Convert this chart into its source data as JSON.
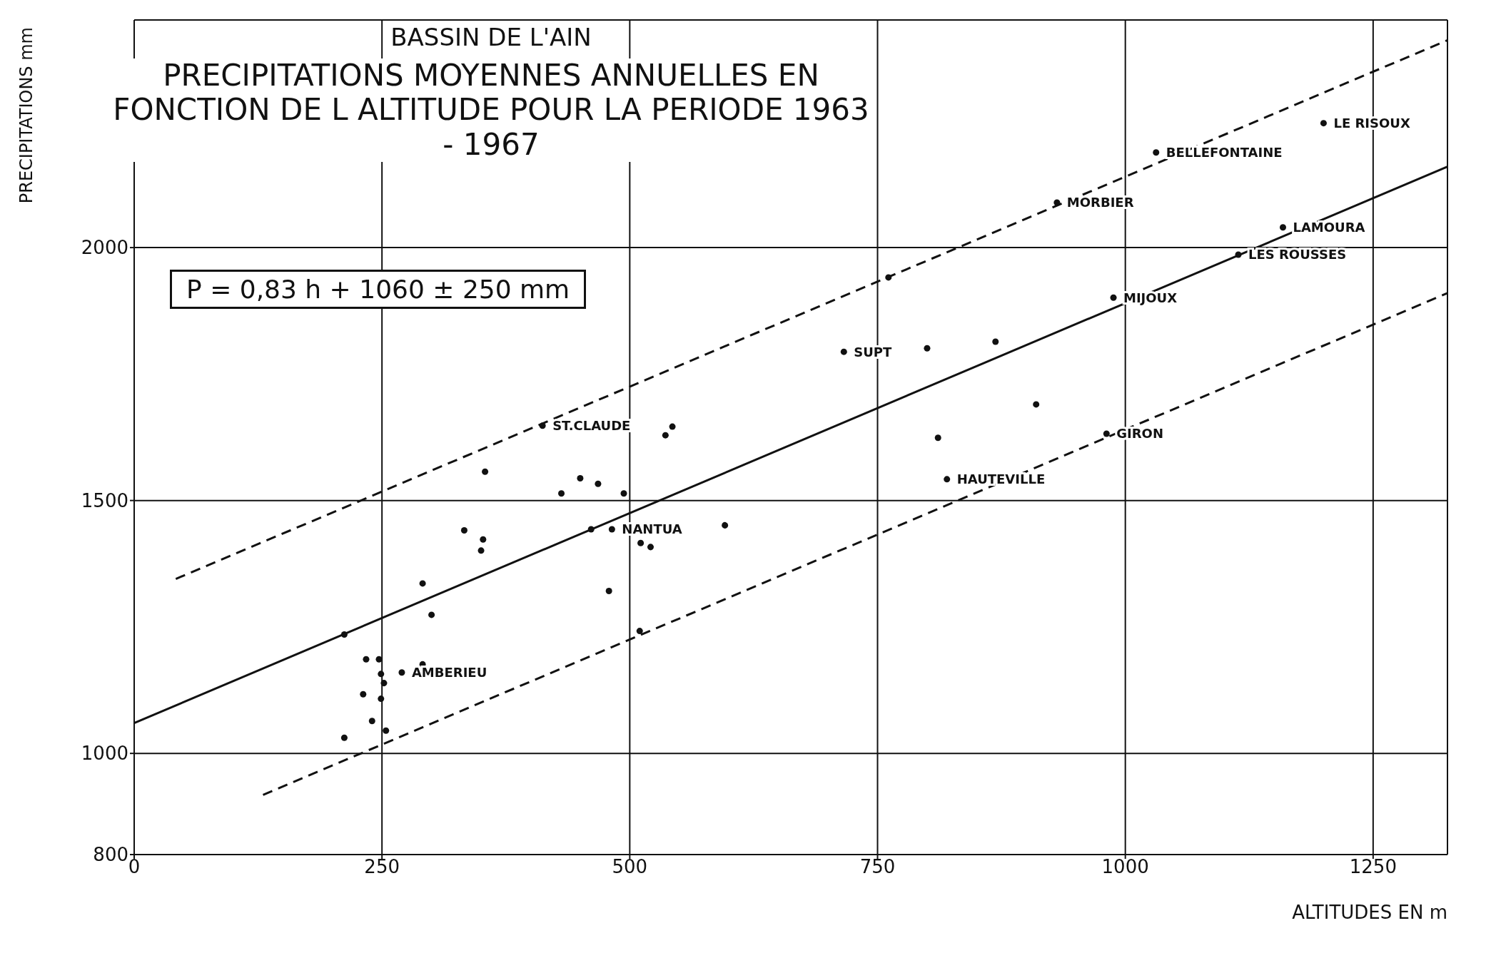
{
  "chart_data": {
    "type": "scatter",
    "title": "BASSIN DE L'AIN",
    "subtitle": "PRECIPITATIONS MOYENNES ANNUELLES EN FONCTION DE L ALTITUDE POUR LA PERIODE 1963 - 1967",
    "xlabel": "ALTITUDES  EN m",
    "ylabel": "PRECIPITATIONS mm",
    "xlim": [
      0,
      1325
    ],
    "xticks": [
      0,
      250,
      500,
      750,
      1000,
      1250
    ],
    "ylim": [
      800,
      2450
    ],
    "yticks": [
      800,
      1000,
      1500,
      2000
    ],
    "grid": true,
    "legend": false,
    "series": [
      {
        "color": "#111111",
        "marker": "circle",
        "x": [
          212,
          212,
          234,
          247,
          231,
          240,
          249,
          252,
          249,
          254,
          270,
          291,
          291,
          300,
          333,
          352,
          350,
          354,
          412,
          431,
          450,
          468,
          494,
          461,
          482,
          479,
          511,
          521,
          510,
          536,
          543,
          596,
          716,
          761,
          800,
          869,
          910,
          811,
          820,
          931,
          1031,
          1200,
          1159,
          1114,
          988,
          981
        ],
        "values": [
          1031,
          1235,
          1186,
          1186,
          1117,
          1064,
          1157,
          1139,
          1108,
          1045,
          1160,
          1176,
          1336,
          1274,
          1441,
          1423,
          1401,
          1557,
          1648,
          1514,
          1544,
          1533,
          1514,
          1443,
          1443,
          1321,
          1416,
          1408,
          1242,
          1629,
          1646,
          1451,
          1794,
          1941,
          1801,
          1814,
          1690,
          1624,
          1542,
          2089,
          2188,
          2246,
          2040,
          1986,
          1901,
          1632
        ]
      },
      {
        "type": "line",
        "color": "#111111",
        "line_style": "solid",
        "marker": "none",
        "x": [
          0,
          1325
        ],
        "values": [
          1060,
          2160
        ]
      },
      {
        "type": "line",
        "color": "#111111",
        "line_style": "dashed",
        "marker": "none",
        "x": [
          42,
          1325
        ],
        "values": [
          1345,
          2410
        ]
      },
      {
        "type": "line",
        "color": "#111111",
        "line_style": "dashed",
        "marker": "none",
        "x": [
          130,
          1325
        ],
        "values": [
          918,
          1910
        ]
      }
    ],
    "annotations": [
      "P = 0,83 h + 1060 ± 250 mm",
      {
        "text": "ST.CLAUDE",
        "x": 412,
        "y": 1648
      },
      {
        "text": "AMBERIEU",
        "x": 270,
        "y": 1160
      },
      {
        "text": "NANTUA",
        "x": 482,
        "y": 1443
      },
      {
        "text": "SUPT",
        "x": 716,
        "y": 1794
      },
      {
        "text": "HAUTEVILLE",
        "x": 820,
        "y": 1542
      },
      {
        "text": "GIRON",
        "x": 981,
        "y": 1632
      },
      {
        "text": "MIJOUX",
        "x": 988,
        "y": 1901
      },
      {
        "text": "LES ROUSSES",
        "x": 1114,
        "y": 1986
      },
      {
        "text": "LAMOURA",
        "x": 1159,
        "y": 2040
      },
      {
        "text": "MORBIER",
        "x": 931,
        "y": 2089
      },
      {
        "text": "BELLEFONTAINE",
        "x": 1031,
        "y": 2188
      },
      {
        "text": "LE RISOUX",
        "x": 1200,
        "y": 2246
      }
    ]
  }
}
